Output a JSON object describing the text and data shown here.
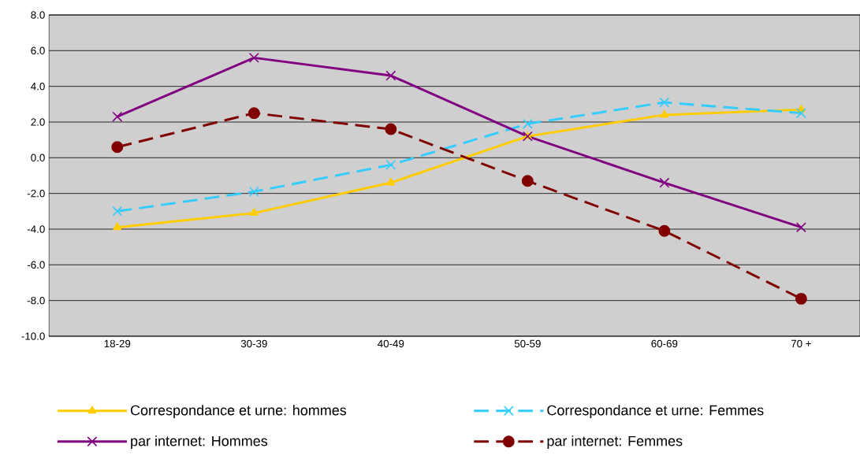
{
  "chart_data": {
    "type": "line",
    "categories": [
      "18-29",
      "30-39",
      "40-49",
      "50-59",
      "60-69",
      "70 +"
    ],
    "series": [
      {
        "name": "Correspondance et urne: hommes",
        "color": "#ffcc00",
        "marker": "triangle",
        "line_style": "solid",
        "values": [
          -3.9,
          -3.1,
          -1.4,
          1.2,
          2.4,
          2.7
        ]
      },
      {
        "name": "Correspondance et urne: Femmes",
        "color": "#33ccff",
        "marker": "cross",
        "line_style": "dashed",
        "values": [
          -3.0,
          -1.9,
          -0.4,
          1.9,
          3.1,
          2.5
        ]
      },
      {
        "name": "par internet: Hommes",
        "color": "#800080",
        "marker": "cross",
        "line_style": "solid",
        "values": [
          2.3,
          5.6,
          4.6,
          1.2,
          -1.4,
          -3.9
        ]
      },
      {
        "name": "par internet: Femmes",
        "color": "#800000",
        "marker": "circle",
        "line_style": "dashed",
        "values": [
          0.6,
          2.5,
          1.6,
          -1.3,
          -4.1,
          -7.9
        ]
      }
    ],
    "ylim": [
      -10,
      8
    ],
    "yticks": [
      {
        "value": -10,
        "label": "-10.0"
      },
      {
        "value": -8,
        "label": "-8.0"
      },
      {
        "value": -6,
        "label": "-6.0"
      },
      {
        "value": -4,
        "label": "-4.0"
      },
      {
        "value": -2,
        "label": "-2.0"
      },
      {
        "value": 0,
        "label": "0.0"
      },
      {
        "value": 2,
        "label": "2.0"
      },
      {
        "value": 4,
        "label": "4.0"
      },
      {
        "value": 6,
        "label": "6.0"
      },
      {
        "value": 8,
        "label": "8.0"
      }
    ],
    "grid": "y",
    "legend": "bottom"
  }
}
